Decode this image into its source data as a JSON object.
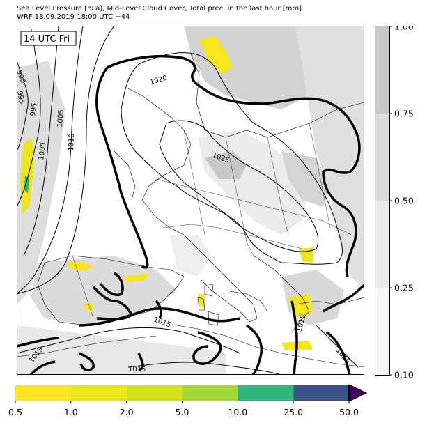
{
  "title_line1": "Sea Level Pressure [hPa], Mid-Level Cloud Cover, Total prec. in the last hour [mm]",
  "title_line2": "WRF 18.09.2019 18:00 UTC +44",
  "time_label": "14 UTC Fri",
  "isobar_labels": [
    "990",
    "995",
    "995",
    "1000",
    "1005",
    "1010",
    "1020",
    "1025",
    "1015",
    "1015",
    "1015",
    "1015",
    "1015"
  ],
  "cloud_cover_colorbar": {
    "ticks": [
      "0.10",
      "0.25",
      "0.50",
      "0.75",
      "1.00"
    ],
    "colors": [
      "#f7f7f7",
      "#eaeaea",
      "#dcdcdc",
      "#c8c8c8"
    ]
  },
  "precip_colorbar": {
    "ticks": [
      "0.5",
      "1.0",
      "2.0",
      "5.0",
      "10.0",
      "25.0",
      "50.0"
    ],
    "colors": [
      "#fde725",
      "#ece51b",
      "#d5e21a",
      "#a0da39",
      "#2fb47c",
      "#3b528b",
      "#440154"
    ]
  },
  "colors": {
    "land_border": "#000000",
    "cloud_light": "#e6e6e6",
    "cloud_mid": "#cfcfcf",
    "precip_light": "#f5e61e"
  }
}
